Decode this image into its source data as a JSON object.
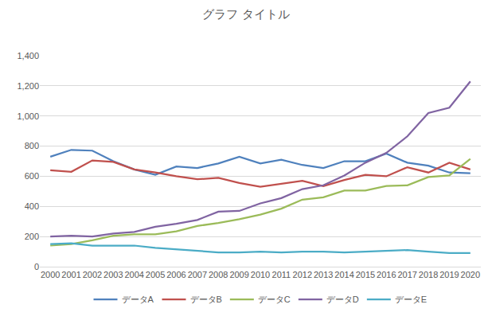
{
  "chart_data": {
    "type": "line",
    "title": "グラフ タイトル",
    "categories": [
      "2000",
      "2001",
      "2002",
      "2003",
      "2004",
      "2005",
      "2006",
      "2007",
      "2008",
      "2009",
      "2010",
      "2011",
      "2012",
      "2013",
      "2014",
      "2015",
      "2016",
      "2017",
      "2018",
      "2019",
      "2020"
    ],
    "series": [
      {
        "name": "データA",
        "color": "#4F81BD",
        "values": [
          730,
          775,
          770,
          700,
          645,
          610,
          665,
          655,
          685,
          730,
          685,
          710,
          675,
          655,
          700,
          700,
          750,
          690,
          670,
          625,
          620
        ]
      },
      {
        "name": "データB",
        "color": "#C0504D",
        "values": [
          640,
          630,
          705,
          695,
          645,
          625,
          600,
          580,
          590,
          555,
          530,
          550,
          570,
          535,
          575,
          610,
          600,
          660,
          625,
          690,
          645
        ]
      },
      {
        "name": "データC",
        "color": "#9BBB59",
        "values": [
          140,
          150,
          175,
          205,
          215,
          215,
          235,
          270,
          290,
          315,
          345,
          385,
          445,
          460,
          505,
          505,
          535,
          540,
          595,
          605,
          715
        ]
      },
      {
        "name": "データD",
        "color": "#8064A2",
        "values": [
          200,
          205,
          200,
          220,
          230,
          265,
          285,
          310,
          365,
          370,
          420,
          455,
          515,
          540,
          605,
          690,
          755,
          865,
          1020,
          1055,
          1230
        ]
      },
      {
        "name": "データE",
        "color": "#4BACC6",
        "values": [
          150,
          155,
          140,
          140,
          140,
          125,
          115,
          105,
          95,
          95,
          100,
          95,
          100,
          100,
          95,
          100,
          105,
          110,
          100,
          90,
          90
        ]
      }
    ],
    "ylim": [
      0,
      1400
    ],
    "yticks": [
      0,
      200,
      400,
      600,
      800,
      {
        "value": 1000,
        "label": "1,000"
      },
      {
        "value": 1200,
        "label": "1,200"
      },
      {
        "value": 1400,
        "label": "1,400"
      }
    ],
    "grid": true,
    "legend": "bottom"
  }
}
